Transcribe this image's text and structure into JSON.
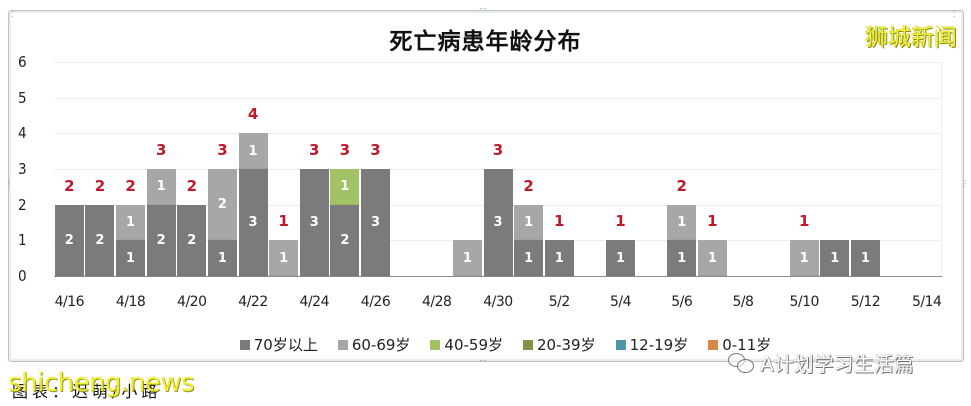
{
  "title": "死亡病患年龄分布",
  "brand": "狮城新闻",
  "footer_caption": "图表：迟萌/小路",
  "watermark_site": "shicheng.news",
  "watermark_wechat": "A计划学习生活篇",
  "colors": {
    "70+": "#7b7a7c",
    "60-69": "#a7a6a8",
    "40-59": "#a1c265",
    "20-39": "#7d9449",
    "12-19": "#4a97a5",
    "0-11": "#d68a45",
    "total_label": "#c0182a"
  },
  "legend": [
    {
      "label": "70岁以上",
      "color": "#7b7a7c"
    },
    {
      "label": "60-69岁",
      "color": "#a7a6a8"
    },
    {
      "label": "40-59岁",
      "color": "#a1c265"
    },
    {
      "label": "20-39岁",
      "color": "#7d9449"
    },
    {
      "label": "12-19岁",
      "color": "#4a97a5"
    },
    {
      "label": "0-11岁",
      "color": "#d68a45"
    }
  ],
  "y_ticks": [
    "0",
    "1",
    "2",
    "3",
    "4",
    "5",
    "6"
  ],
  "x_tick_labels": [
    "4/16",
    "4/18",
    "4/20",
    "4/22",
    "4/24",
    "4/26",
    "4/28",
    "4/30",
    "5/2",
    "5/4",
    "5/6",
    "5/8",
    "5/10",
    "5/12",
    "5/14"
  ],
  "chart_data": {
    "type": "bar",
    "stacked": true,
    "title": "死亡病患年龄分布",
    "xlabel": "",
    "ylabel": "",
    "ylim": [
      0,
      6
    ],
    "grid": true,
    "legend_position": "bottom",
    "categories": [
      "4/16",
      "4/17",
      "4/18",
      "4/19",
      "4/20",
      "4/21",
      "4/22",
      "4/23",
      "4/24",
      "4/25",
      "4/26",
      "4/27",
      "4/28",
      "4/29",
      "4/30",
      "5/1",
      "5/2",
      "5/3",
      "5/4",
      "5/5",
      "5/6",
      "5/7",
      "5/8",
      "5/9",
      "5/10",
      "5/11",
      "5/12",
      "5/13",
      "5/14"
    ],
    "series": [
      {
        "name": "70岁以上",
        "values": [
          2,
          2,
          1,
          2,
          2,
          1,
          3,
          0,
          3,
          2,
          3,
          0,
          0,
          0,
          3,
          1,
          1,
          0,
          1,
          0,
          1,
          0,
          0,
          0,
          0,
          1,
          1,
          0,
          0
        ]
      },
      {
        "name": "60-69岁",
        "values": [
          0,
          0,
          1,
          1,
          0,
          2,
          1,
          1,
          0,
          0,
          0,
          0,
          0,
          1,
          0,
          1,
          0,
          0,
          0,
          0,
          1,
          1,
          0,
          0,
          1,
          0,
          0,
          0,
          0
        ]
      },
      {
        "name": "40-59岁",
        "values": [
          0,
          0,
          0,
          0,
          0,
          0,
          0,
          0,
          0,
          1,
          0,
          0,
          0,
          0,
          0,
          0,
          0,
          0,
          0,
          0,
          0,
          0,
          0,
          0,
          0,
          0,
          0,
          0,
          0
        ]
      },
      {
        "name": "20-39岁",
        "values": [
          0,
          0,
          0,
          0,
          0,
          0,
          0,
          0,
          0,
          0,
          0,
          0,
          0,
          0,
          0,
          0,
          0,
          0,
          0,
          0,
          0,
          0,
          0,
          0,
          0,
          0,
          0,
          0,
          0
        ]
      },
      {
        "name": "12-19岁",
        "values": [
          0,
          0,
          0,
          0,
          0,
          0,
          0,
          0,
          0,
          0,
          0,
          0,
          0,
          0,
          0,
          0,
          0,
          0,
          0,
          0,
          0,
          0,
          0,
          0,
          0,
          0,
          0,
          0,
          0
        ]
      },
      {
        "name": "0-11岁",
        "values": [
          0,
          0,
          0,
          0,
          0,
          0,
          0,
          0,
          0,
          0,
          0,
          0,
          0,
          0,
          0,
          0,
          0,
          0,
          0,
          0,
          0,
          0,
          0,
          0,
          0,
          0,
          0,
          0,
          0
        ]
      }
    ],
    "total_labels": [
      "2",
      "2",
      "2",
      "3",
      "2",
      "3",
      "4",
      "1",
      "3",
      "3",
      "3",
      "",
      "",
      "",
      "3",
      "2",
      "1",
      "",
      "1",
      "",
      "2",
      "1",
      "",
      "",
      "1",
      "",
      "",
      "",
      ""
    ]
  }
}
